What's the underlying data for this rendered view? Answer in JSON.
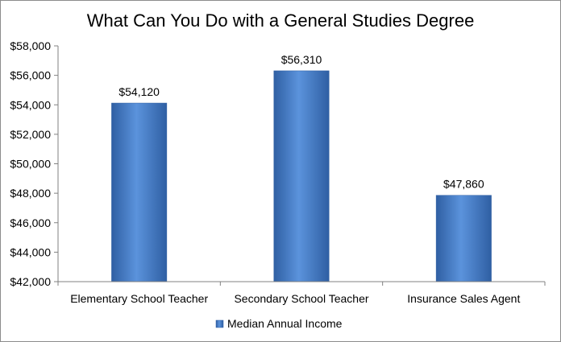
{
  "chart_data": {
    "type": "bar",
    "title": "What Can You Do with a General Studies Degree",
    "xlabel": "",
    "ylabel": "",
    "categories": [
      "Elementary School Teacher",
      "Secondary School Teacher",
      "Insurance Sales Agent"
    ],
    "series": [
      {
        "name": "Median Annual Income",
        "values": [
          54120,
          56310,
          47860
        ],
        "color": "#4a7ec4"
      }
    ],
    "data_labels": [
      "$54,120",
      "$56,310",
      "$47,860"
    ],
    "ylim": [
      42000,
      58000
    ],
    "y_ticks": [
      42000,
      44000,
      46000,
      48000,
      50000,
      52000,
      54000,
      56000,
      58000
    ],
    "y_tick_labels": [
      "$42,000",
      "$44,000",
      "$46,000",
      "$48,000",
      "$50,000",
      "$52,000",
      "$54,000",
      "$56,000",
      "$58,000"
    ],
    "grid": false,
    "legend_position": "bottom"
  }
}
